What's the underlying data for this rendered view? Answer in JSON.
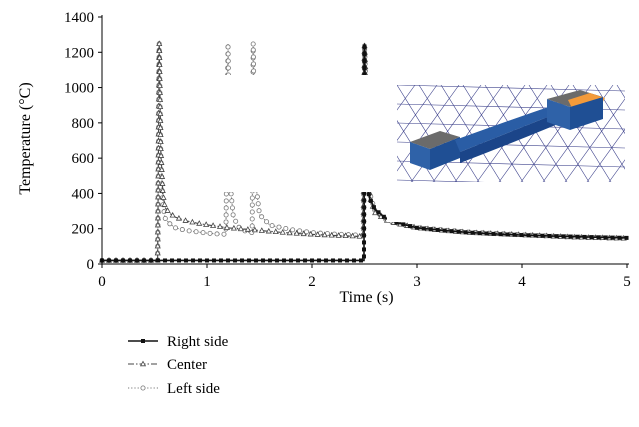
{
  "chart_data": {
    "type": "line",
    "title": "",
    "xlabel": "Time (s)",
    "ylabel": "Temperature (°C)",
    "xlim": [
      0,
      5
    ],
    "ylim": [
      0,
      1400
    ],
    "xticks": [
      0,
      1,
      2,
      3,
      4,
      5
    ],
    "yticks": [
      0,
      200,
      400,
      600,
      800,
      1000,
      1200,
      1400
    ],
    "grid": false,
    "legend_position": "bottom-left, below plot",
    "inset_image": "3D finite element mesh of a curved bar with a heated (orange) end",
    "series": [
      {
        "name": "Right side",
        "style": "solid line, filled square markers",
        "color": "#111111",
        "x": [
          0,
          0.54,
          0.545,
          0.6,
          0.8,
          1.0,
          1.2,
          1.4,
          1.6,
          1.8,
          2.0,
          2.2,
          2.4,
          2.495,
          2.5,
          2.505,
          2.52,
          2.55,
          2.6,
          2.7,
          2.8,
          3.0,
          3.25,
          3.5,
          3.75,
          4.0,
          4.25,
          4.5,
          4.75,
          5.0
        ],
        "y": [
          20,
          20,
          20,
          20,
          20,
          20,
          20,
          20,
          20,
          20,
          20,
          20,
          20,
          20,
          1250,
          700,
          460,
          370,
          310,
          260,
          235,
          205,
          190,
          178,
          170,
          164,
          159,
          155,
          151,
          148
        ]
      },
      {
        "name": "Center",
        "style": "dash-dot line, triangle markers",
        "color": "#444444",
        "x": [
          0,
          0.53,
          0.545,
          0.56,
          0.58,
          0.6,
          0.65,
          0.7,
          0.8,
          0.9,
          1.0,
          1.2,
          1.4,
          1.6,
          1.8,
          2.0,
          2.2,
          2.4,
          2.49,
          2.5,
          2.55,
          2.6,
          2.7,
          2.8,
          3.0,
          3.25,
          3.5,
          4.0,
          4.5,
          5.0
        ],
        "y": [
          20,
          20,
          1250,
          650,
          400,
          320,
          285,
          265,
          245,
          232,
          222,
          205,
          195,
          185,
          175,
          168,
          162,
          158,
          155,
          1240,
          380,
          290,
          250,
          230,
          205,
          190,
          178,
          165,
          152,
          145
        ]
      },
      {
        "name": "Left side",
        "style": "dotted line, open circle markers",
        "color": "#777777",
        "x": [
          0,
          0.53,
          0.545,
          0.56,
          0.58,
          0.6,
          0.65,
          0.7,
          0.8,
          1.0,
          1.15,
          1.18,
          1.2,
          1.22,
          1.25,
          1.3,
          1.35,
          1.4,
          1.43,
          1.44,
          1.46,
          1.5,
          1.6,
          1.8,
          2.0,
          2.2,
          2.4,
          2.49,
          2.5,
          2.55,
          2.6,
          2.7,
          2.8,
          3.0,
          3.5,
          4.0,
          4.5,
          5.0
        ],
        "y": [
          20,
          20,
          1250,
          600,
          340,
          260,
          225,
          205,
          190,
          175,
          168,
          170,
          1250,
          460,
          270,
          210,
          190,
          180,
          178,
          1250,
          480,
          280,
          220,
          195,
          178,
          170,
          165,
          162,
          1240,
          400,
          300,
          255,
          230,
          205,
          180,
          165,
          152,
          145
        ]
      }
    ]
  }
}
